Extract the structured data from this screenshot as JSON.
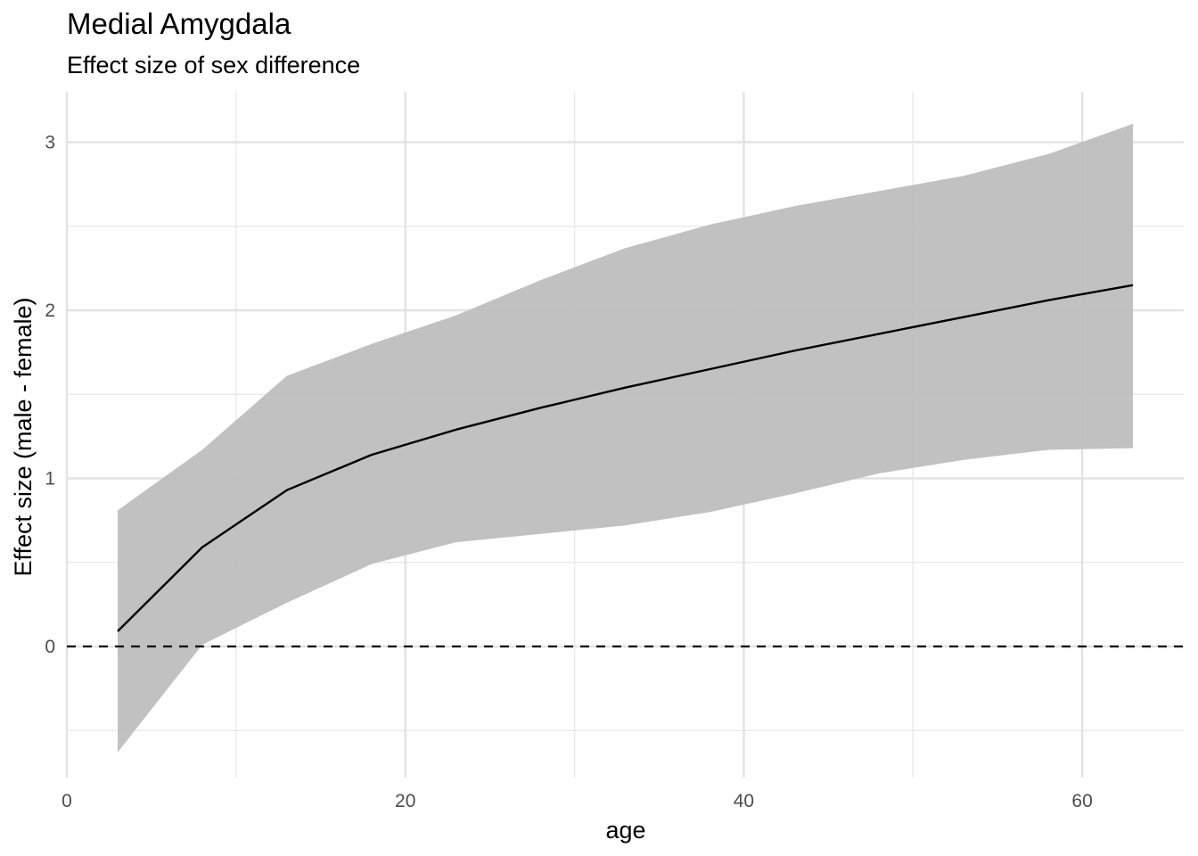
{
  "chart_data": {
    "type": "line",
    "title": "Medial Amygdala",
    "subtitle": "Effect size of sex difference",
    "xlabel": "age",
    "ylabel": "Effect size (male - female)",
    "xlim": [
      0,
      66
    ],
    "ylim": [
      -0.78,
      3.3
    ],
    "x_ticks": [
      0,
      20,
      40,
      60
    ],
    "y_ticks": [
      0,
      1,
      2,
      3
    ],
    "x_minor_ticks": [
      10,
      30,
      50
    ],
    "y_minor_ticks": [
      -0.5,
      0.5,
      1.5,
      2.5
    ],
    "grid": true,
    "reference_line": {
      "y": 0,
      "style": "dashed",
      "color": "#000000"
    },
    "series": [
      {
        "x": [
          3,
          8,
          13,
          18,
          23,
          28,
          33,
          38,
          43,
          48,
          53,
          58,
          63
        ],
        "values": [
          0.09,
          0.59,
          0.93,
          1.14,
          1.29,
          1.42,
          1.54,
          1.65,
          1.76,
          1.86,
          1.96,
          2.06,
          2.15
        ],
        "color": "#000000"
      }
    ],
    "band": {
      "x": [
        3,
        8,
        13,
        18,
        23,
        28,
        33,
        38,
        43,
        48,
        53,
        58,
        63
      ],
      "lower": [
        -0.63,
        0.01,
        0.26,
        0.49,
        0.62,
        0.67,
        0.72,
        0.8,
        0.91,
        1.03,
        1.11,
        1.17,
        1.18
      ],
      "upper": [
        0.81,
        1.17,
        1.61,
        1.8,
        1.97,
        2.18,
        2.37,
        2.51,
        2.62,
        2.71,
        2.8,
        2.93,
        3.11
      ],
      "color": "#bebebe"
    }
  }
}
